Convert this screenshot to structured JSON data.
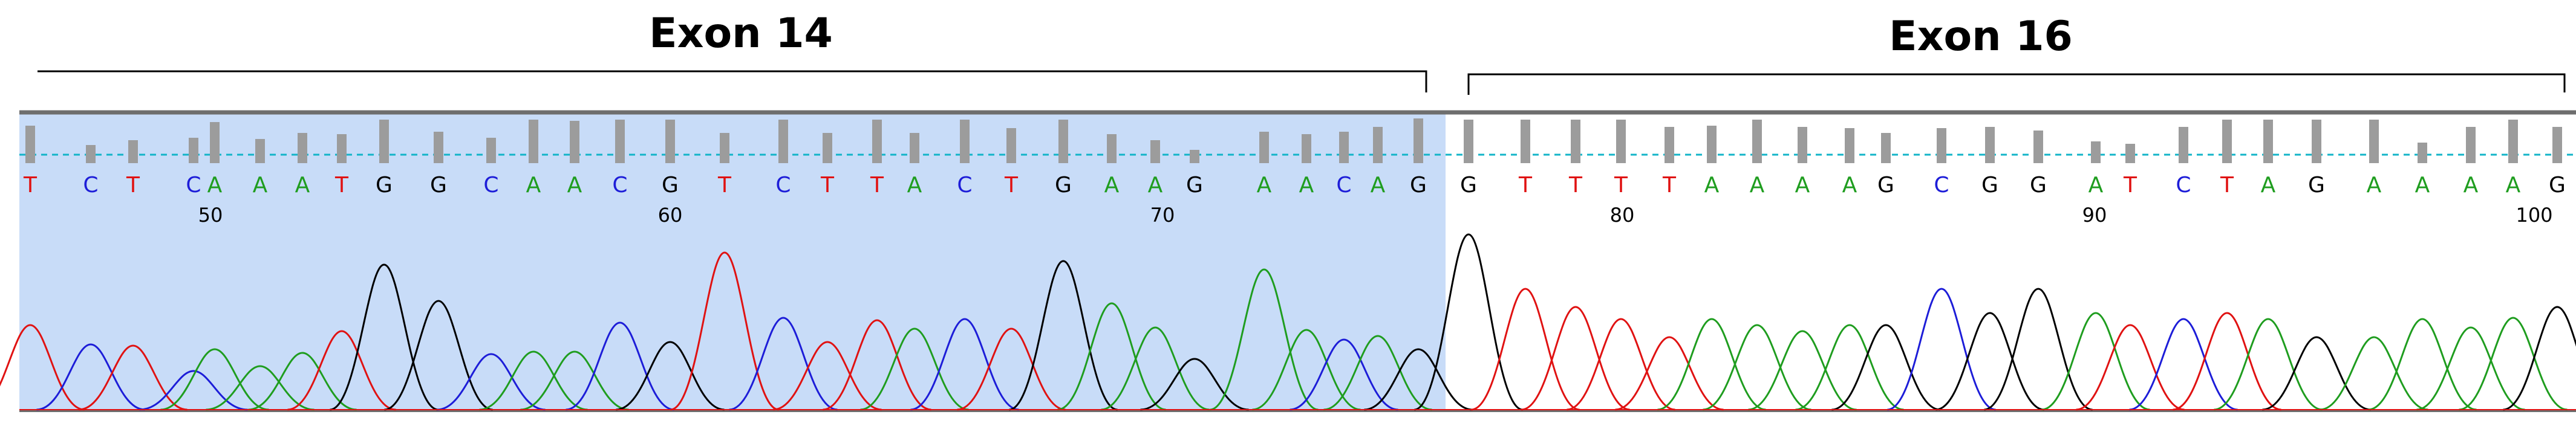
{
  "exons": [
    {
      "label": "Exon 14"
    },
    {
      "label": "Exon 16"
    }
  ],
  "sequence": [
    "T",
    "C",
    "T",
    "C",
    "A",
    "A",
    "A",
    "T",
    "G",
    "G",
    "C",
    "A",
    "A",
    "C",
    "G",
    "T",
    "C",
    "T",
    "T",
    "A",
    "C",
    "T",
    "G",
    "A",
    "A",
    "G",
    "A",
    "A",
    "C",
    "A",
    "G",
    "G",
    "T",
    "T",
    "T",
    "T",
    "A",
    "A",
    "A",
    "A",
    "G",
    "C",
    "G",
    "G",
    "A",
    "T",
    "C",
    "T",
    "A",
    "G",
    "A",
    "A",
    "A",
    "A",
    "G"
  ],
  "positions": [
    "50",
    "60",
    "70",
    "80",
    "90",
    "100"
  ],
  "colors": {
    "A": "#1f9d1f",
    "C": "#1d1dd8",
    "G": "#000000",
    "T": "#e01212",
    "highlight": "#c8dcf8",
    "quality_bar": "#9c9c9c",
    "baseline": "#12b4c8",
    "frame": "#6e6e6e"
  }
}
